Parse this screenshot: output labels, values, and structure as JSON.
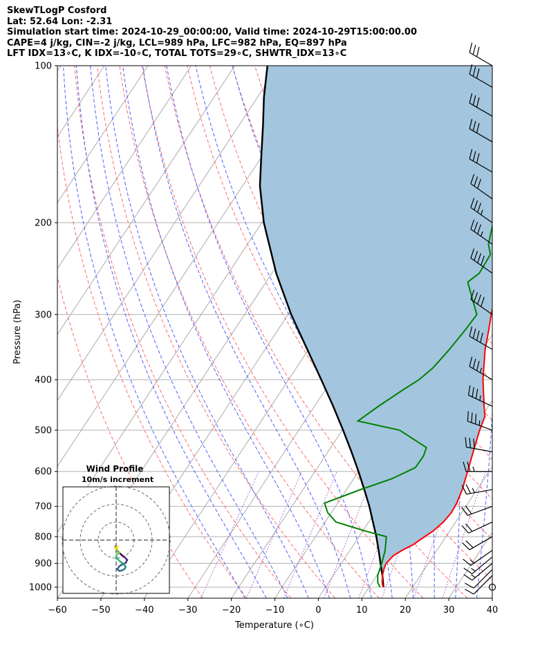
{
  "header": {
    "title": "SkewTLogP Cosford",
    "location": "Lat: 52.64   Lon: -2.31",
    "times": "Simulation start time: 2024-10-29_00:00:00, Valid time: 2024-10-29T15:00:00.00",
    "params": "CAPE=4 j/kg, CIN=-2 j/kg, LCL=989 hPa, LFC=982 hPa, EQ=897 hPa",
    "indices": "LFT IDX=13∘C, K IDX=-10∘C, TOTAL TOTS=29∘C, SHWTR_IDX=13∘C"
  },
  "chart_data": {
    "type": "skew-t log-p",
    "xlabel": "Temperature (∘C)",
    "ylabel": "Pressure (hPa)",
    "xlim": [
      -60,
      40
    ],
    "ylim": [
      1050,
      100
    ],
    "x_ticks": [
      "−60",
      "−50",
      "−40",
      "−30",
      "−20",
      "−10",
      "0",
      "10",
      "20",
      "30",
      "40"
    ],
    "y_ticks": [
      "100",
      "200",
      "300",
      "400",
      "500",
      "600",
      "700",
      "800",
      "900",
      "1000"
    ],
    "grid": true,
    "colors": {
      "temperature": "#ff0000",
      "dewpoint": "#008000",
      "parcel": "#000000",
      "cape_fill": "#a3c6de",
      "dry_adiabats": "#ff6b6b",
      "moist_adiabats": "#4a60ff",
      "mixing_ratio": "#9a4fc0",
      "isotherms": "#aaaaaa"
    },
    "series": [
      {
        "name": "temperature",
        "points": [
          [
            1000,
            13.2
          ],
          [
            980,
            12.3
          ],
          [
            950,
            11.3
          ],
          [
            920,
            10.6
          ],
          [
            900,
            10.3
          ],
          [
            870,
            10.8
          ],
          [
            850,
            12.0
          ],
          [
            830,
            13.6
          ],
          [
            810,
            14.6
          ],
          [
            780,
            16.2
          ],
          [
            750,
            17.2
          ],
          [
            720,
            17.6
          ],
          [
            690,
            17.4
          ],
          [
            650,
            16.6
          ],
          [
            600,
            15.1
          ],
          [
            550,
            13.4
          ],
          [
            500,
            11.6
          ],
          [
            470,
            10.7
          ],
          [
            450,
            9.0
          ],
          [
            400,
            4.7
          ],
          [
            350,
            0.6
          ],
          [
            320,
            -1.6
          ],
          [
            300,
            -3.3
          ],
          [
            270,
            -5.7
          ],
          [
            250,
            -7.5
          ],
          [
            235,
            -9.0
          ],
          [
            220,
            -9.6
          ],
          [
            200,
            -10.3
          ],
          [
            190,
            -10.5
          ],
          [
            180,
            -10.0
          ],
          [
            170,
            -9.4
          ],
          [
            160,
            -8.3
          ],
          [
            150,
            -6.7
          ],
          [
            140,
            -4.3
          ],
          [
            130,
            -1.6
          ],
          [
            120,
            0.8
          ],
          [
            110,
            3.0
          ],
          [
            100,
            5.0
          ]
        ]
      },
      {
        "name": "dewpoint",
        "points": [
          [
            1000,
            12.5
          ],
          [
            980,
            11.3
          ],
          [
            950,
            10.2
          ],
          [
            900,
            9.3
          ],
          [
            850,
            8.1
          ],
          [
            800,
            6.3
          ],
          [
            780,
            0.5
          ],
          [
            750,
            -7.5
          ],
          [
            720,
            -10.8
          ],
          [
            690,
            -13.0
          ],
          [
            650,
            -6.8
          ],
          [
            620,
            -1.3
          ],
          [
            590,
            2.5
          ],
          [
            560,
            2.6
          ],
          [
            540,
            2.0
          ],
          [
            500,
            -6.8
          ],
          [
            480,
            -17.8
          ],
          [
            450,
            -15.3
          ],
          [
            420,
            -12.3
          ],
          [
            400,
            -10.0
          ],
          [
            380,
            -8.6
          ],
          [
            350,
            -7.6
          ],
          [
            320,
            -6.9
          ],
          [
            300,
            -6.6
          ],
          [
            280,
            -10.0
          ],
          [
            260,
            -13.6
          ],
          [
            250,
            -12.3
          ],
          [
            230,
            -12.6
          ],
          [
            220,
            -14.6
          ],
          [
            200,
            -16.8
          ],
          [
            190,
            -17.6
          ],
          [
            180,
            -17.9
          ],
          [
            170,
            -16.3
          ],
          [
            160,
            -14.5
          ],
          [
            150,
            -15.0
          ],
          [
            140,
            -18.3
          ],
          [
            130,
            -17.7
          ],
          [
            120,
            -15.0
          ],
          [
            110,
            -11.6
          ],
          [
            100,
            -8.8
          ]
        ]
      },
      {
        "name": "parcel",
        "points": [
          [
            1000,
            13.3
          ],
          [
            950,
            11.3
          ],
          [
            900,
            9.0
          ],
          [
            850,
            6.6
          ],
          [
            800,
            4.0
          ],
          [
            750,
            1.0
          ],
          [
            700,
            -2.2
          ],
          [
            650,
            -5.9
          ],
          [
            600,
            -10.0
          ],
          [
            550,
            -14.6
          ],
          [
            500,
            -19.8
          ],
          [
            450,
            -25.7
          ],
          [
            400,
            -32.5
          ],
          [
            350,
            -40.3
          ],
          [
            300,
            -49.3
          ],
          [
            250,
            -59.0
          ],
          [
            200,
            -69.5
          ],
          [
            170,
            -76.0
          ],
          [
            150,
            -80.0
          ],
          [
            130,
            -84.5
          ],
          [
            115,
            -88.5
          ],
          [
            100,
            -92.5
          ]
        ]
      }
    ],
    "wind_barbs": [
      {
        "p": 1000,
        "speed_kt": 0,
        "dir_deg": 0
      },
      {
        "p": 950,
        "speed_kt": 10,
        "dir_deg": 225
      },
      {
        "p": 925,
        "speed_kt": 10,
        "dir_deg": 225
      },
      {
        "p": 900,
        "speed_kt": 15,
        "dir_deg": 230
      },
      {
        "p": 875,
        "speed_kt": 15,
        "dir_deg": 230
      },
      {
        "p": 850,
        "speed_kt": 15,
        "dir_deg": 235
      },
      {
        "p": 800,
        "speed_kt": 20,
        "dir_deg": 240
      },
      {
        "p": 750,
        "speed_kt": 20,
        "dir_deg": 245
      },
      {
        "p": 700,
        "speed_kt": 20,
        "dir_deg": 250
      },
      {
        "p": 650,
        "speed_kt": 25,
        "dir_deg": 260
      },
      {
        "p": 600,
        "speed_kt": 25,
        "dir_deg": 270
      },
      {
        "p": 550,
        "speed_kt": 30,
        "dir_deg": 280
      },
      {
        "p": 500,
        "speed_kt": 35,
        "dir_deg": 290
      },
      {
        "p": 450,
        "speed_kt": 35,
        "dir_deg": 295
      },
      {
        "p": 400,
        "speed_kt": 35,
        "dir_deg": 300
      },
      {
        "p": 350,
        "speed_kt": 40,
        "dir_deg": 300
      },
      {
        "p": 300,
        "speed_kt": 40,
        "dir_deg": 305
      },
      {
        "p": 250,
        "speed_kt": 40,
        "dir_deg": 305
      },
      {
        "p": 220,
        "speed_kt": 35,
        "dir_deg": 305
      },
      {
        "p": 200,
        "speed_kt": 35,
        "dir_deg": 305
      },
      {
        "p": 180,
        "speed_kt": 30,
        "dir_deg": 305
      },
      {
        "p": 160,
        "speed_kt": 30,
        "dir_deg": 300
      },
      {
        "p": 140,
        "speed_kt": 30,
        "dir_deg": 300
      },
      {
        "p": 125,
        "speed_kt": 30,
        "dir_deg": 300
      },
      {
        "p": 110,
        "speed_kt": 30,
        "dir_deg": 300
      },
      {
        "p": 100,
        "speed_kt": 30,
        "dir_deg": 300
      }
    ],
    "hodograph": {
      "title": "Wind Profile",
      "subtitle": "10m/s increment",
      "points": [
        [
          -0.2,
          -1.6
        ],
        [
          0.4,
          -2.8
        ],
        [
          1.2,
          -3.6
        ],
        [
          2.2,
          -4.4
        ],
        [
          2.8,
          -5.0
        ],
        [
          2.4,
          -5.8
        ],
        [
          1.4,
          -6.2
        ],
        [
          0.8,
          -6.6
        ],
        [
          0.3,
          -7.4
        ],
        [
          0.9,
          -7.8
        ],
        [
          1.6,
          -7.6
        ],
        [
          2.2,
          -7.2
        ],
        [
          2.4,
          -6.7
        ],
        [
          1.8,
          -6.0
        ],
        [
          1.0,
          -5.4
        ],
        [
          0.4,
          -4.8
        ],
        [
          0.0,
          -4.2
        ],
        [
          0.2,
          -3.6
        ],
        [
          0.8,
          -3.2
        ],
        [
          0.4,
          -2.6
        ],
        [
          0.0,
          -2.2
        ],
        [
          -0.4,
          -1.9
        ],
        [
          0.2,
          -1.8
        ],
        [
          0.6,
          -1.6
        ]
      ]
    }
  }
}
